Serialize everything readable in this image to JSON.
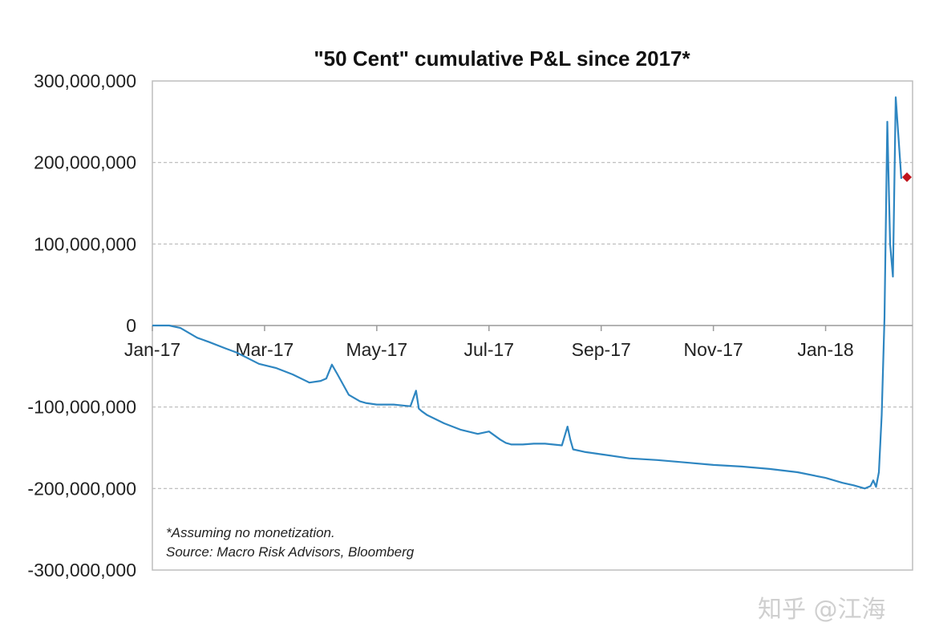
{
  "chart_data": {
    "type": "line",
    "title": "\"50 Cent\" cumulative P&L since 2017*",
    "xlabel": "",
    "ylabel": "",
    "ylim": [
      -300000000,
      300000000
    ],
    "ytick_values": [
      300000000,
      200000000,
      100000000,
      0,
      -100000000,
      -200000000,
      -300000000
    ],
    "ytick_labels": [
      "300,000,000",
      "200,000,000",
      "100,000,000",
      "0",
      "-100,000,000",
      "-200,000,000",
      "-300,000,000"
    ],
    "xtick_labels": [
      "Jan-17",
      "Mar-17",
      "May-17",
      "Jul-17",
      "Sep-17",
      "Nov-17",
      "Jan-18"
    ],
    "xtick_months": [
      0,
      2,
      4,
      6,
      8,
      10,
      12
    ],
    "xlim_months": [
      0,
      13.55
    ],
    "grid": "horizontal dashed",
    "line_color": "#2e86c1",
    "marker_color": "#c0141c",
    "series": [
      {
        "name": "cumulative P&L",
        "x_months": [
          0,
          0.3,
          0.5,
          0.8,
          1.0,
          1.3,
          1.5,
          1.7,
          1.9,
          2.2,
          2.5,
          2.8,
          3.0,
          3.1,
          3.2,
          3.3,
          3.5,
          3.7,
          3.8,
          3.9,
          4.0,
          4.3,
          4.6,
          4.7,
          4.75,
          4.8,
          4.9,
          5.2,
          5.5,
          5.8,
          6.0,
          6.2,
          6.3,
          6.4,
          6.6,
          6.8,
          7.0,
          7.3,
          7.4,
          7.45,
          7.5,
          7.7,
          8.0,
          8.5,
          9.0,
          9.5,
          10.0,
          10.5,
          11.0,
          11.5,
          12.0,
          12.3,
          12.5,
          12.7,
          12.8,
          12.85,
          12.9,
          12.95,
          13.0,
          13.05,
          13.1,
          13.15,
          13.2,
          13.25,
          13.3,
          13.35
        ],
        "values": [
          0,
          0,
          -3000000,
          -15000000,
          -20000000,
          -28000000,
          -33000000,
          -40000000,
          -47000000,
          -52000000,
          -60000000,
          -70000000,
          -68000000,
          -65000000,
          -48000000,
          -60000000,
          -85000000,
          -93000000,
          -95000000,
          -96000000,
          -97000000,
          -97000000,
          -99000000,
          -80000000,
          -102000000,
          -105000000,
          -110000000,
          -120000000,
          -128000000,
          -133000000,
          -130000000,
          -140000000,
          -144000000,
          -146000000,
          -146000000,
          -145000000,
          -145000000,
          -147000000,
          -124000000,
          -140000000,
          -152000000,
          -155000000,
          -158000000,
          -163000000,
          -165000000,
          -168000000,
          -171000000,
          -173000000,
          -176000000,
          -180000000,
          -187000000,
          -193000000,
          -196000000,
          -200000000,
          -197000000,
          -190000000,
          -198000000,
          -180000000,
          -110000000,
          10000000,
          250000000,
          100000000,
          60000000,
          280000000,
          230000000,
          180000000
        ]
      }
    ],
    "current_marker": {
      "x_month": 13.45,
      "value": 182000000
    },
    "annotations": [
      "*Assuming no monetization.",
      "Source: Macro Risk Advisors, Bloomberg"
    ]
  },
  "watermark": "知乎 @江海"
}
